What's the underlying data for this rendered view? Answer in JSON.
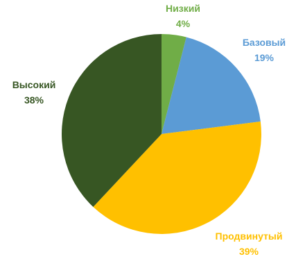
{
  "chart_data": {
    "type": "pie",
    "title": "",
    "legend": "none",
    "slices": [
      {
        "label": "Низкий",
        "value": 4,
        "value_label": "4%",
        "color": "#70AD47"
      },
      {
        "label": "Базовый",
        "value": 19,
        "value_label": "19%",
        "color": "#5B9BD5"
      },
      {
        "label": "Продвинутый",
        "value": 39,
        "value_label": "39%",
        "color": "#FFC000"
      },
      {
        "label": "Высокий",
        "value": 38,
        "value_label": "38%",
        "color": "#375623"
      }
    ]
  }
}
